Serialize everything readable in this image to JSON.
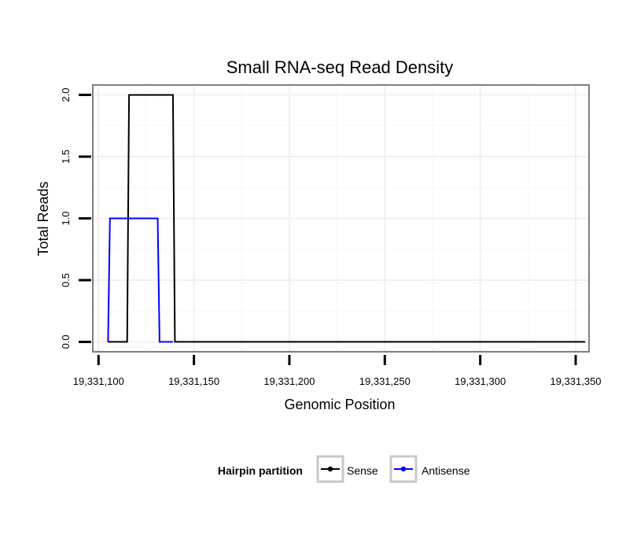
{
  "chart_data": {
    "type": "line",
    "title": "Small RNA-seq Read Density",
    "xlabel": "Genomic Position",
    "ylabel": "Total Reads",
    "xlim": [
      19331097,
      19331357
    ],
    "ylim": [
      -0.08,
      2.08
    ],
    "x_ticks": [
      19331100,
      19331150,
      19331200,
      19331250,
      19331300,
      19331350
    ],
    "x_tick_labels": [
      "19,331,100",
      "19,331,150",
      "19,331,200",
      "19,331,250",
      "19,331,300",
      "19,331,350"
    ],
    "y_ticks": [
      0.0,
      0.5,
      1.0,
      1.5,
      2.0
    ],
    "y_tick_labels": [
      "0.0",
      "0.5",
      "1.0",
      "1.5",
      "2.0"
    ],
    "grid": true,
    "legend": {
      "title": "Hairpin partition",
      "position": "bottom"
    },
    "series": [
      {
        "name": "Sense",
        "color": "#000000",
        "x": [
          19331105,
          19331115,
          19331116,
          19331139,
          19331140,
          19331355
        ],
        "y": [
          0,
          0,
          2,
          2,
          0,
          0
        ]
      },
      {
        "name": "Antisense",
        "color": "#0000ff",
        "x": [
          19331105,
          19331106,
          19331131,
          19331132,
          19331139
        ],
        "y": [
          0,
          1,
          1,
          0,
          0
        ]
      }
    ]
  }
}
